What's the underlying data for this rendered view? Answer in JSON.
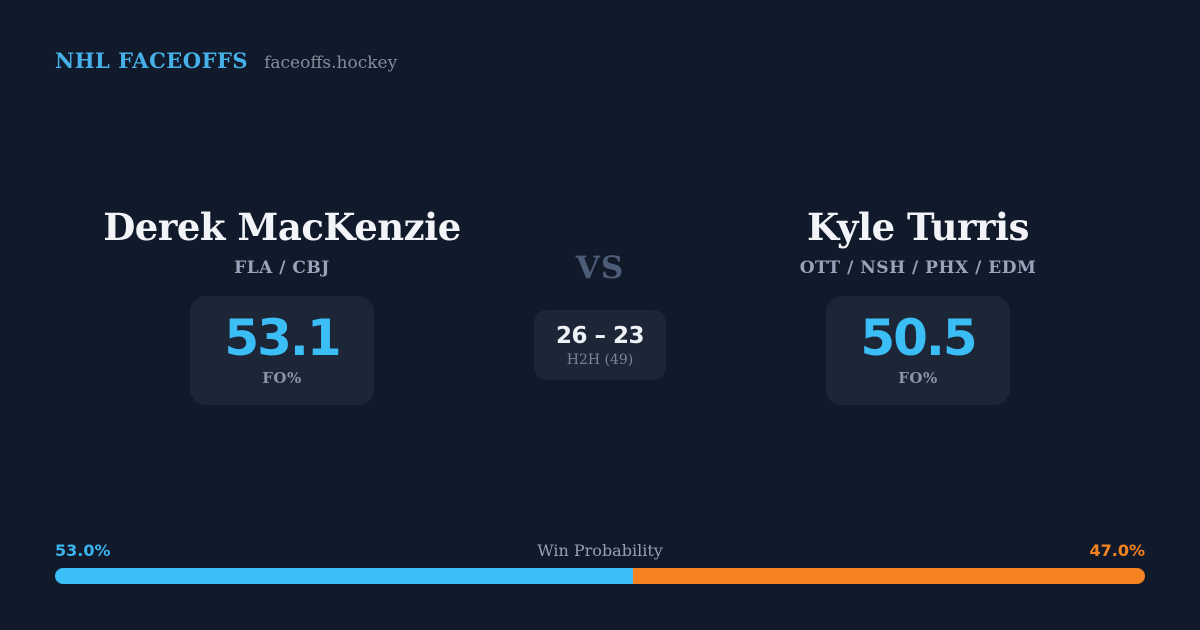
{
  "header": {
    "brand": "NHL FACEOFFS",
    "site": "faceoffs.hockey"
  },
  "matchup": {
    "vs_label": "VS",
    "left": {
      "name": "Derek MacKenzie",
      "teams": "FLA / CBJ",
      "value": "53.1",
      "value_label": "FO%"
    },
    "right": {
      "name": "Kyle Turris",
      "teams": "OTT / NSH / PHX / EDM",
      "value": "50.5",
      "value_label": "FO%"
    },
    "h2h": {
      "score": "26 – 23",
      "label": "H2H (49)"
    }
  },
  "win_probability": {
    "label": "Win Probability",
    "left_pct": "53.0%",
    "right_pct": "47.0%",
    "left_value": 53.0,
    "right_value": 47.0,
    "left_style": "width:53%",
    "right_style": "width:47%"
  },
  "colors": {
    "background": "#111a2b",
    "card": "#1c2637",
    "accent_blue": "#3bbdf6",
    "accent_orange": "#f58220",
    "header_blue": "#45b1e8",
    "name_white": "#f2f4f8",
    "muted_gray": "#8c95a6",
    "vs_gray": "#4d5d78"
  }
}
